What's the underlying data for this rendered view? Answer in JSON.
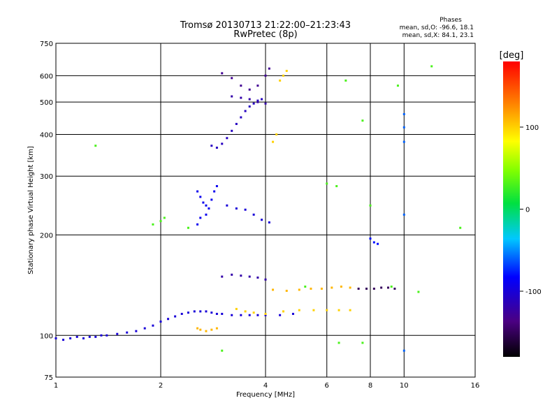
{
  "chart_data": {
    "type": "scatter",
    "title": "Tromsø 20130713 21:22:00–21:23:43",
    "subtitle": "RwPretec (8p)",
    "xlabel": "Frequency [MHz]",
    "ylabel": "Stationary phase Virtual Height [km]",
    "x_scale": "log",
    "y_scale": "log",
    "xlim": [
      1,
      16
    ],
    "ylim": [
      75,
      750
    ],
    "x_ticks": [
      "1",
      "2",
      "4",
      "6",
      "8",
      "10",
      "16"
    ],
    "x_tick_values": [
      1,
      2,
      4,
      6,
      8,
      10,
      16
    ],
    "y_ticks": [
      "750",
      "600",
      "500",
      "400",
      "300",
      "200",
      "100",
      "75"
    ],
    "y_tick_values": [
      750,
      600,
      500,
      400,
      300,
      200,
      100,
      75
    ],
    "grid": true,
    "annotation": {
      "title": "Phases",
      "line1": "mean, sd,O: -96.6, 18.1",
      "line2": "mean, sd,X:  84.1, 23.1"
    },
    "colorbar": {
      "label": "[deg]",
      "ticks": [
        "100",
        "0",
        "-100"
      ],
      "tick_values": [
        100,
        0,
        -100
      ],
      "range": [
        -180,
        180
      ]
    },
    "traces": [
      {
        "name_hidden": "",
        "points": [
          [
            1.0,
            98
          ],
          [
            1.05,
            97
          ],
          [
            1.1,
            98
          ],
          [
            1.15,
            99
          ],
          [
            1.2,
            98
          ],
          [
            1.25,
            99
          ],
          [
            1.3,
            99
          ],
          [
            1.35,
            100
          ],
          [
            1.4,
            100
          ],
          [
            1.5,
            101
          ],
          [
            1.6,
            102
          ],
          [
            1.7,
            103
          ],
          [
            1.8,
            105
          ],
          [
            1.9,
            107
          ],
          [
            2.0,
            110
          ],
          [
            2.1,
            112
          ],
          [
            2.2,
            114
          ],
          [
            2.3,
            116
          ],
          [
            2.4,
            117
          ],
          [
            2.5,
            118
          ],
          [
            2.6,
            118
          ],
          [
            2.7,
            118
          ],
          [
            2.8,
            117
          ],
          [
            2.9,
            116
          ],
          [
            3.0,
            116
          ],
          [
            3.2,
            115
          ],
          [
            3.4,
            115
          ],
          [
            3.6,
            115
          ],
          [
            3.8,
            115
          ],
          [
            4.0,
            115
          ],
          [
            4.4,
            115
          ],
          [
            4.8,
            116
          ]
        ],
        "phase": -100
      },
      {
        "points": [
          [
            3.3,
            120
          ],
          [
            3.5,
            118
          ],
          [
            3.7,
            117
          ],
          [
            4.0,
            116
          ],
          [
            4.5,
            118
          ],
          [
            5.0,
            119
          ],
          [
            5.5,
            119
          ],
          [
            6.0,
            119
          ],
          [
            6.5,
            119
          ],
          [
            7.0,
            119
          ]
        ],
        "phase": 100
      },
      {
        "points": [
          [
            3.0,
            150
          ],
          [
            3.2,
            152
          ],
          [
            3.4,
            151
          ],
          [
            3.6,
            150
          ],
          [
            3.8,
            149
          ],
          [
            4.0,
            147
          ]
        ],
        "phase": -120
      },
      {
        "points": [
          [
            4.2,
            137
          ],
          [
            4.6,
            136
          ],
          [
            5.0,
            137
          ],
          [
            5.4,
            138
          ],
          [
            5.8,
            138
          ],
          [
            6.2,
            139
          ],
          [
            6.6,
            140
          ],
          [
            7.0,
            139
          ]
        ],
        "phase": 110
      },
      {
        "points": [
          [
            7.4,
            138
          ],
          [
            7.8,
            138
          ],
          [
            8.2,
            138
          ],
          [
            8.6,
            139
          ],
          [
            9.0,
            139
          ],
          [
            9.4,
            138
          ]
        ],
        "phase": -150
      },
      {
        "points": [
          [
            2.55,
            270
          ],
          [
            2.6,
            260
          ],
          [
            2.65,
            250
          ],
          [
            2.7,
            245
          ],
          [
            2.75,
            240
          ],
          [
            2.8,
            255
          ],
          [
            2.85,
            270
          ],
          [
            2.9,
            280
          ],
          [
            2.7,
            230
          ],
          [
            2.6,
            225
          ],
          [
            2.55,
            215
          ]
        ],
        "phase": -90
      },
      {
        "points": [
          [
            2.8,
            370
          ],
          [
            2.9,
            365
          ],
          [
            3.0,
            375
          ],
          [
            3.1,
            390
          ],
          [
            3.2,
            410
          ],
          [
            3.3,
            430
          ],
          [
            3.4,
            450
          ],
          [
            3.5,
            470
          ],
          [
            3.6,
            485
          ],
          [
            3.7,
            495
          ],
          [
            3.8,
            505
          ],
          [
            3.9,
            510
          ]
        ],
        "phase": -110
      },
      {
        "points": [
          [
            3.2,
            520
          ],
          [
            3.4,
            515
          ],
          [
            3.6,
            510
          ],
          [
            3.8,
            500
          ],
          [
            4.0,
            495
          ]
        ],
        "phase": -120
      },
      {
        "points": [
          [
            3.0,
            610
          ],
          [
            3.2,
            590
          ],
          [
            3.4,
            560
          ],
          [
            3.6,
            545
          ],
          [
            3.8,
            560
          ],
          [
            4.0,
            600
          ],
          [
            4.1,
            630
          ]
        ],
        "phase": -130
      },
      {
        "points": [
          [
            3.1,
            245
          ],
          [
            3.3,
            240
          ],
          [
            3.5,
            238
          ],
          [
            3.7,
            230
          ],
          [
            3.9,
            222
          ],
          [
            4.1,
            218
          ]
        ],
        "phase": -100
      },
      {
        "points": [
          [
            2.55,
            105
          ],
          [
            2.6,
            104
          ],
          [
            2.7,
            103
          ],
          [
            2.8,
            104
          ],
          [
            2.9,
            105
          ]
        ],
        "phase": 110
      },
      {
        "points": [
          [
            8.0,
            195
          ],
          [
            8.2,
            190
          ],
          [
            8.4,
            188
          ]
        ],
        "phase": -80
      },
      {
        "points": [
          [
            4.4,
            580
          ],
          [
            4.5,
            600
          ],
          [
            4.6,
            620
          ],
          [
            4.2,
            380
          ],
          [
            4.3,
            400
          ]
        ],
        "phase": 100
      },
      {
        "points": [
          [
            10.0,
            420
          ],
          [
            10.0,
            460
          ],
          [
            10.0,
            380
          ],
          [
            10.0,
            230
          ],
          [
            10.0,
            90
          ]
        ],
        "phase": -60
      },
      {
        "points": [
          [
            1.3,
            370
          ],
          [
            1.9,
            215
          ],
          [
            2.0,
            220
          ],
          [
            2.05,
            225
          ],
          [
            3.0,
            90
          ],
          [
            6.5,
            95
          ],
          [
            7.6,
            95
          ],
          [
            12.0,
            640
          ],
          [
            8.0,
            245
          ],
          [
            6.8,
            580
          ],
          [
            7.6,
            440
          ],
          [
            6.0,
            285
          ],
          [
            6.4,
            280
          ],
          [
            9.2,
            140
          ],
          [
            9.6,
            560
          ],
          [
            11.0,
            135
          ],
          [
            14.5,
            210
          ],
          [
            2.4,
            210
          ],
          [
            5.2,
            140
          ]
        ],
        "phase": 30
      }
    ]
  }
}
